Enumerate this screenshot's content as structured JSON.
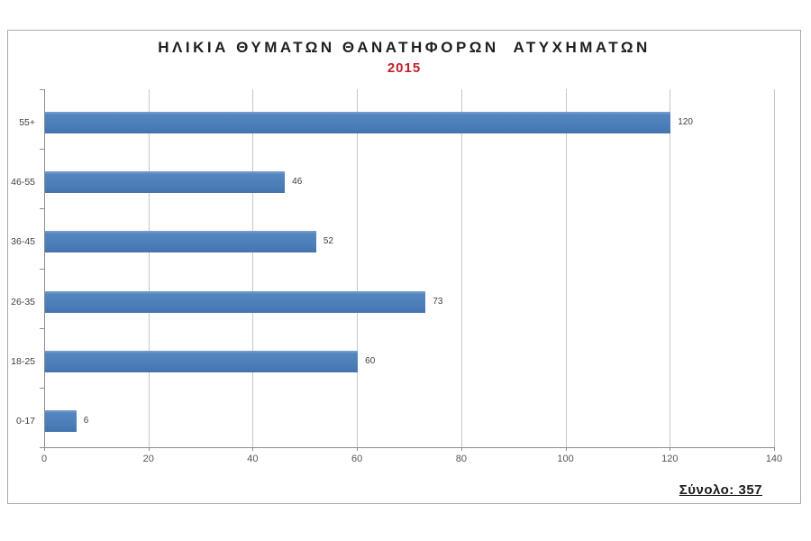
{
  "chart": {
    "title": "ΗΛΙΚΙΑ ΘΥΜΑΤΩΝ ΘΑΝΑΤΗΦΟΡΩΝ  ΑΤΥΧΗΜΑΤΩΝ",
    "subtitle": "2015",
    "total_label": "Σύνολο: 357"
  },
  "chart_data": {
    "type": "bar",
    "orientation": "horizontal",
    "title": "ΗΛΙΚΙΑ ΘΥΜΑΤΩΝ ΘΑΝΑΤΗΦΟΡΩΝ ΑΤΥΧΗΜΑΤΩΝ",
    "subtitle": "2015",
    "categories": [
      "55+",
      "46-55",
      "36-45",
      "26-35",
      "18-25",
      "0-17"
    ],
    "values": [
      120,
      46,
      52,
      73,
      60,
      6
    ],
    "data_labels": [
      "120",
      "46",
      "52",
      "73",
      "60",
      "6"
    ],
    "xlim": [
      0,
      140
    ],
    "xticks": [
      0,
      20,
      40,
      60,
      80,
      100,
      120,
      140
    ],
    "grid": true,
    "legend": "none",
    "total": 357,
    "total_label": "Σύνολο: 357",
    "bar_color": "#4e80bc",
    "subtitle_color": "#c02128",
    "gridline_color": "#c6c6c6",
    "axis_color": "#8e8e8e"
  }
}
